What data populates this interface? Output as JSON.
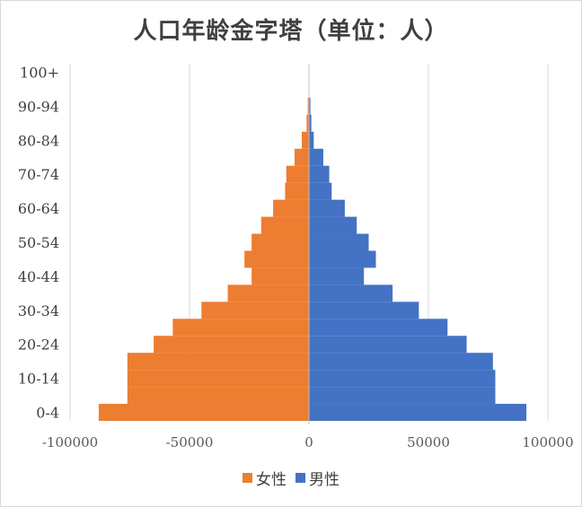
{
  "chart_data": {
    "type": "bar",
    "orientation": "horizontal",
    "title": "人口年龄金字塔（单位：人）",
    "categories": [
      "0-4",
      "5-9",
      "10-14",
      "15-19",
      "20-24",
      "25-29",
      "30-34",
      "35-39",
      "40-44",
      "45-49",
      "50-54",
      "55-59",
      "60-64",
      "65-69",
      "70-74",
      "75-79",
      "80-84",
      "85-89",
      "90-94",
      "95-99",
      "100+"
    ],
    "y_tick_labels": [
      "0-4",
      "10-14",
      "20-24",
      "30-34",
      "40-44",
      "50-54",
      "60-64",
      "70-74",
      "80-84",
      "90-94",
      "100+"
    ],
    "series": [
      {
        "name": "女性",
        "color": "#ED7D31",
        "values": [
          -88000,
          -76000,
          -76000,
          -76000,
          -65000,
          -57000,
          -45000,
          -34000,
          -24000,
          -27000,
          -24000,
          -20000,
          -15000,
          -10000,
          -9500,
          -6000,
          -3000,
          -1000,
          -500,
          0,
          0
        ]
      },
      {
        "name": "男性",
        "color": "#4472C4",
        "values": [
          91000,
          78000,
          78000,
          77000,
          66000,
          58000,
          46000,
          35000,
          23000,
          28000,
          25000,
          20000,
          15000,
          9500,
          8500,
          6000,
          2000,
          1000,
          600,
          0,
          0
        ]
      }
    ],
    "xlim": [
      -100000,
      100000
    ],
    "x_ticks": [
      -100000,
      -50000,
      0,
      50000,
      100000
    ],
    "x_tick_labels": [
      "-100000",
      "-50000",
      "0",
      "50000",
      "100000"
    ],
    "grid": "vertical",
    "legend_position": "bottom"
  }
}
